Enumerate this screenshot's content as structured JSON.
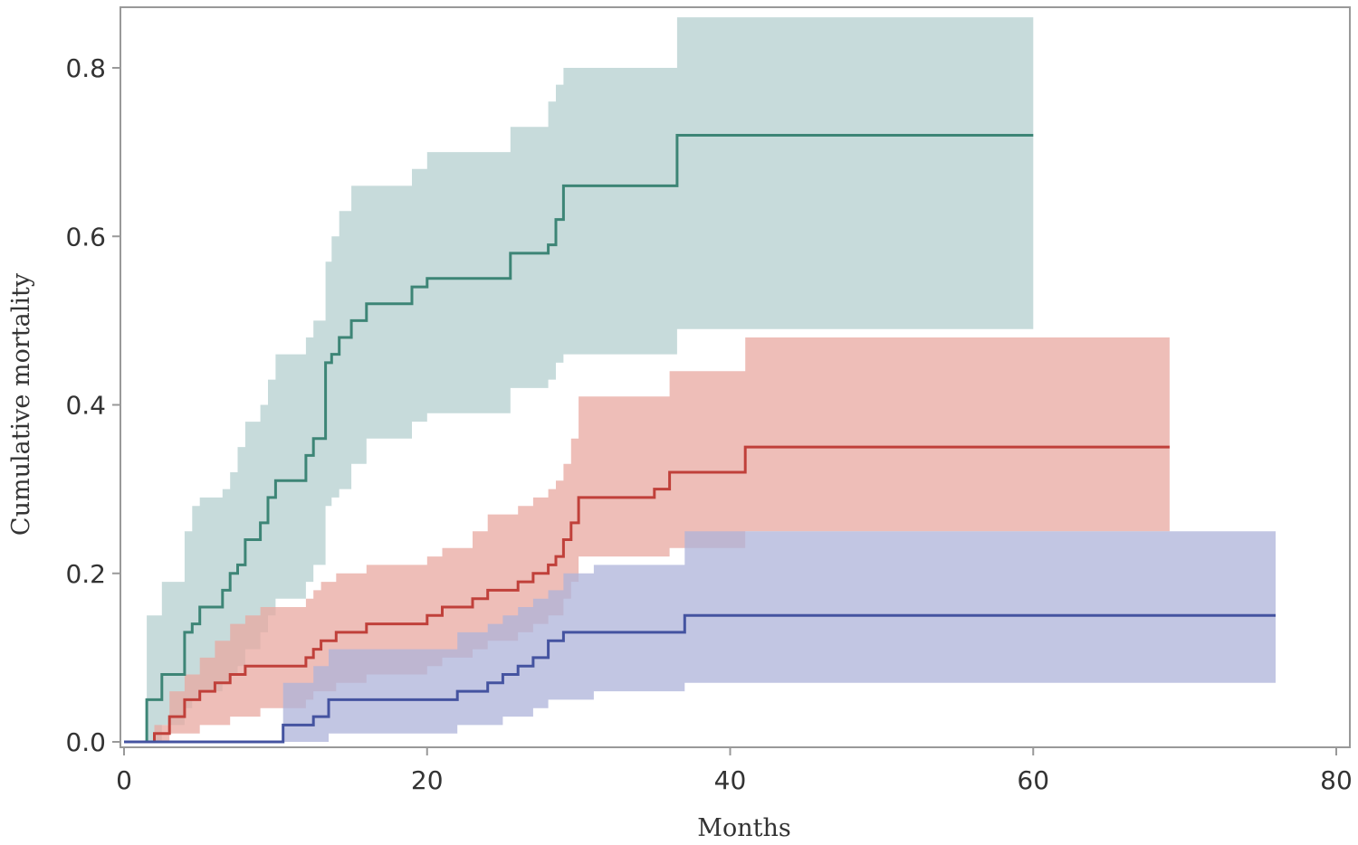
{
  "chart_data": {
    "type": "line",
    "title": "",
    "xlabel": "Months",
    "ylabel": "Cumulative mortality",
    "xlim": [
      0,
      80
    ],
    "ylim": [
      0,
      0.86
    ],
    "xticks": [
      0,
      20,
      40,
      60,
      80
    ],
    "yticks": [
      0.0,
      0.2,
      0.4,
      0.6,
      0.8
    ],
    "xtick_labels": [
      "0",
      "20",
      "40",
      "60",
      "80"
    ],
    "ytick_labels": [
      "0.0",
      "0.2",
      "0.4",
      "0.6",
      "0.8"
    ],
    "grid": false,
    "legend": "none",
    "series": [
      {
        "color": "#3d8576",
        "band_color": "#b4cfcf",
        "x": [
          0,
          1,
          1.5,
          2.5,
          4,
          4.5,
          5,
          6.5,
          7,
          7.5,
          8,
          9,
          9.5,
          10,
          12,
          12.5,
          13.3,
          13.7,
          14.2,
          15,
          16,
          19,
          20,
          24,
          25.5,
          28,
          28.5,
          29,
          32,
          36.5,
          60
        ],
        "y": [
          0,
          0,
          0.05,
          0.08,
          0.13,
          0.14,
          0.16,
          0.18,
          0.2,
          0.21,
          0.24,
          0.26,
          0.29,
          0.31,
          0.34,
          0.36,
          0.45,
          0.46,
          0.48,
          0.5,
          0.52,
          0.54,
          0.55,
          0.55,
          0.58,
          0.59,
          0.62,
          0.66,
          0.66,
          0.72,
          0.72
        ],
        "upper": [
          0,
          0,
          0.15,
          0.19,
          0.25,
          0.28,
          0.29,
          0.3,
          0.32,
          0.35,
          0.38,
          0.4,
          0.43,
          0.46,
          0.48,
          0.5,
          0.57,
          0.6,
          0.63,
          0.66,
          0.66,
          0.68,
          0.7,
          0.7,
          0.73,
          0.76,
          0.78,
          0.8,
          0.8,
          0.86,
          0.86
        ],
        "lower": [
          0,
          0,
          0.0,
          0.02,
          0.04,
          0.05,
          0.06,
          0.07,
          0.08,
          0.09,
          0.11,
          0.13,
          0.15,
          0.17,
          0.19,
          0.21,
          0.28,
          0.29,
          0.3,
          0.33,
          0.36,
          0.38,
          0.39,
          0.39,
          0.42,
          0.43,
          0.45,
          0.46,
          0.46,
          0.49,
          0.49
        ]
      },
      {
        "color": "#c0403a",
        "band_color": "#e8a8a0",
        "x": [
          0,
          2,
          3,
          4,
          5,
          6,
          7,
          8,
          9,
          12,
          12.5,
          13,
          14,
          16,
          20,
          21,
          23,
          24,
          26,
          27,
          28,
          28.5,
          29,
          29.5,
          30,
          35,
          36,
          41,
          69
        ],
        "y": [
          0,
          0.01,
          0.03,
          0.05,
          0.06,
          0.07,
          0.08,
          0.09,
          0.09,
          0.1,
          0.11,
          0.12,
          0.13,
          0.14,
          0.15,
          0.16,
          0.17,
          0.18,
          0.19,
          0.2,
          0.21,
          0.22,
          0.24,
          0.26,
          0.29,
          0.3,
          0.32,
          0.35,
          0.35
        ],
        "upper": [
          0,
          0.02,
          0.06,
          0.08,
          0.1,
          0.12,
          0.14,
          0.15,
          0.16,
          0.17,
          0.18,
          0.19,
          0.2,
          0.21,
          0.22,
          0.23,
          0.25,
          0.27,
          0.28,
          0.29,
          0.3,
          0.31,
          0.33,
          0.36,
          0.41,
          0.41,
          0.44,
          0.48,
          0.48
        ],
        "lower": [
          0,
          0.0,
          0.01,
          0.01,
          0.02,
          0.02,
          0.03,
          0.03,
          0.04,
          0.05,
          0.06,
          0.06,
          0.07,
          0.08,
          0.09,
          0.1,
          0.11,
          0.12,
          0.13,
          0.14,
          0.15,
          0.15,
          0.17,
          0.19,
          0.22,
          0.22,
          0.23,
          0.25,
          0.25
        ]
      },
      {
        "color": "#4453a0",
        "band_color": "#aeb3da",
        "x": [
          0,
          9.5,
          10.5,
          12.5,
          13.5,
          22,
          24,
          25,
          26,
          27,
          28,
          29,
          31,
          37,
          76
        ],
        "y": [
          0,
          0,
          0.02,
          0.03,
          0.05,
          0.06,
          0.07,
          0.08,
          0.09,
          0.1,
          0.12,
          0.13,
          0.13,
          0.15,
          0.15
        ],
        "upper": [
          0,
          0,
          0.07,
          0.09,
          0.11,
          0.13,
          0.14,
          0.15,
          0.16,
          0.17,
          0.18,
          0.2,
          0.21,
          0.25,
          0.25
        ],
        "lower": [
          0,
          0,
          0.0,
          0.0,
          0.01,
          0.02,
          0.02,
          0.03,
          0.03,
          0.04,
          0.05,
          0.05,
          0.06,
          0.07,
          0.07
        ]
      }
    ]
  }
}
